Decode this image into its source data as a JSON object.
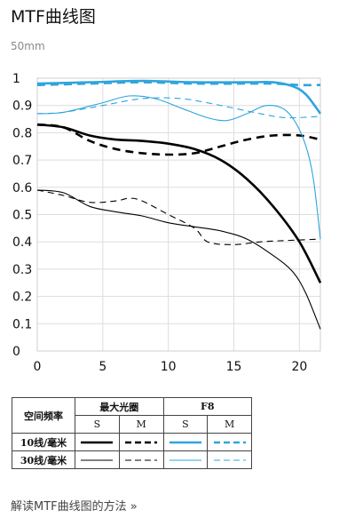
{
  "page": {
    "title": "MTF曲线图",
    "subtitle": "50mm",
    "link_text": "解读MTF曲线图的方法 »"
  },
  "chart_data": {
    "type": "line",
    "xlim": [
      0,
      21.6
    ],
    "ylim": [
      0,
      1
    ],
    "x_ticks": [
      "0",
      "5",
      "10",
      "15",
      "20"
    ],
    "x_tick_values": [
      0,
      5,
      10,
      15,
      20
    ],
    "y_ticks": [
      "0",
      "0.1",
      "0.2",
      "0.3",
      "0.4",
      "0.5",
      "0.6",
      "0.7",
      "0.8",
      "0.9",
      "1"
    ],
    "y_tick_values": [
      0,
      0.1,
      0.2,
      0.3,
      0.4,
      0.5,
      0.6,
      0.7,
      0.8,
      0.9,
      1
    ],
    "grid": true,
    "colors": {
      "black": "#000000",
      "blue": "#2ea5dd",
      "grid": "#dddddd"
    },
    "series": [
      {
        "key": "maxap-10-s",
        "color": "black",
        "dash": false,
        "width": 2.6,
        "x": [
          0,
          2,
          4,
          6,
          8,
          10,
          12,
          14,
          16,
          18,
          20,
          21.6
        ],
        "y": [
          0.83,
          0.82,
          0.79,
          0.775,
          0.77,
          0.76,
          0.74,
          0.7,
          0.63,
          0.53,
          0.4,
          0.25
        ]
      },
      {
        "key": "maxap-10-m",
        "color": "black",
        "dash": true,
        "width": 2.6,
        "x": [
          0,
          2,
          4,
          6,
          8,
          10,
          12,
          14,
          16,
          18,
          20,
          21.6
        ],
        "y": [
          0.83,
          0.82,
          0.77,
          0.74,
          0.725,
          0.72,
          0.725,
          0.75,
          0.775,
          0.79,
          0.79,
          0.775
        ]
      },
      {
        "key": "maxap-30-s",
        "color": "black",
        "dash": false,
        "width": 1.1,
        "x": [
          0,
          2,
          4,
          6,
          8,
          10,
          12,
          14,
          16,
          18,
          19.5,
          20.5,
          21.6
        ],
        "y": [
          0.59,
          0.58,
          0.53,
          0.51,
          0.495,
          0.47,
          0.455,
          0.44,
          0.41,
          0.35,
          0.29,
          0.21,
          0.08
        ]
      },
      {
        "key": "maxap-30-m",
        "color": "black",
        "dash": true,
        "width": 1.1,
        "x": [
          0,
          2,
          4,
          6,
          7,
          8,
          10,
          12,
          13,
          15,
          17,
          19,
          21.6
        ],
        "y": [
          0.59,
          0.57,
          0.545,
          0.55,
          0.56,
          0.55,
          0.5,
          0.45,
          0.4,
          0.39,
          0.4,
          0.405,
          0.41
        ]
      },
      {
        "key": "f8-10-s",
        "color": "blue",
        "dash": false,
        "width": 2.6,
        "x": [
          0,
          4,
          8,
          12,
          16,
          18,
          19.5,
          20.5,
          21.6
        ],
        "y": [
          0.98,
          0.985,
          0.99,
          0.985,
          0.985,
          0.985,
          0.97,
          0.94,
          0.87
        ]
      },
      {
        "key": "f8-10-m",
        "color": "blue",
        "dash": true,
        "width": 2.6,
        "x": [
          0,
          4,
          8,
          12,
          16,
          18,
          20,
          21.6
        ],
        "y": [
          0.975,
          0.98,
          0.985,
          0.98,
          0.98,
          0.98,
          0.975,
          0.975
        ]
      },
      {
        "key": "f8-30-s",
        "color": "blue",
        "dash": false,
        "width": 1.1,
        "x": [
          0,
          2,
          5,
          7,
          9,
          11,
          13,
          14.5,
          16,
          17.5,
          19,
          20.2,
          21,
          21.6
        ],
        "y": [
          0.87,
          0.875,
          0.91,
          0.935,
          0.925,
          0.89,
          0.855,
          0.845,
          0.87,
          0.9,
          0.88,
          0.79,
          0.65,
          0.41
        ]
      },
      {
        "key": "f8-30-m",
        "color": "blue",
        "dash": true,
        "width": 1.1,
        "x": [
          0,
          2,
          5,
          8,
          11,
          14,
          17,
          19,
          21.6
        ],
        "y": [
          0.87,
          0.875,
          0.9,
          0.925,
          0.925,
          0.9,
          0.87,
          0.855,
          0.86
        ]
      }
    ]
  },
  "legend": {
    "corner_label": "空间频率",
    "group_maxap": "最大光圈",
    "group_f8": "F8",
    "col_s": "S",
    "col_m": "M",
    "row_10": "10线/毫米",
    "row_30": "30线/毫米"
  }
}
